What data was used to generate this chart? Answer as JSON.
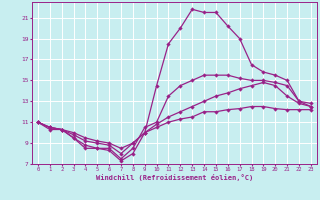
{
  "xlabel": "Windchill (Refroidissement éolien,°C)",
  "xlim": [
    -0.5,
    23.5
  ],
  "ylim": [
    7,
    22.5
  ],
  "yticks": [
    7,
    9,
    11,
    13,
    15,
    17,
    19,
    21
  ],
  "xticks": [
    0,
    1,
    2,
    3,
    4,
    5,
    6,
    7,
    8,
    9,
    10,
    11,
    12,
    13,
    14,
    15,
    16,
    17,
    18,
    19,
    20,
    21,
    22,
    23
  ],
  "bg_color": "#c8eef0",
  "grid_color": "#ffffff",
  "line_color": "#992288",
  "line1": [
    11.0,
    10.5,
    10.3,
    9.5,
    8.5,
    8.5,
    8.3,
    7.3,
    8.0,
    10.0,
    14.5,
    18.5,
    20.0,
    21.8,
    21.5,
    21.5,
    20.2,
    19.0,
    16.5,
    15.8,
    15.5,
    15.0,
    13.0,
    12.8
  ],
  "line2": [
    11.0,
    10.3,
    10.3,
    9.5,
    8.8,
    8.5,
    8.5,
    7.5,
    8.5,
    10.5,
    11.0,
    13.5,
    14.5,
    15.0,
    15.5,
    15.5,
    15.5,
    15.2,
    15.0,
    15.0,
    14.8,
    14.5,
    13.0,
    12.5
  ],
  "line3": [
    11.0,
    10.5,
    10.3,
    9.8,
    9.2,
    9.0,
    8.8,
    8.0,
    9.0,
    10.0,
    10.8,
    11.5,
    12.0,
    12.5,
    13.0,
    13.5,
    13.8,
    14.2,
    14.5,
    14.8,
    14.5,
    13.5,
    12.8,
    12.5
  ],
  "line4": [
    11.0,
    10.5,
    10.3,
    10.0,
    9.5,
    9.2,
    9.0,
    8.5,
    9.0,
    10.0,
    10.5,
    11.0,
    11.3,
    11.5,
    12.0,
    12.0,
    12.2,
    12.3,
    12.5,
    12.5,
    12.3,
    12.2,
    12.2,
    12.2
  ]
}
